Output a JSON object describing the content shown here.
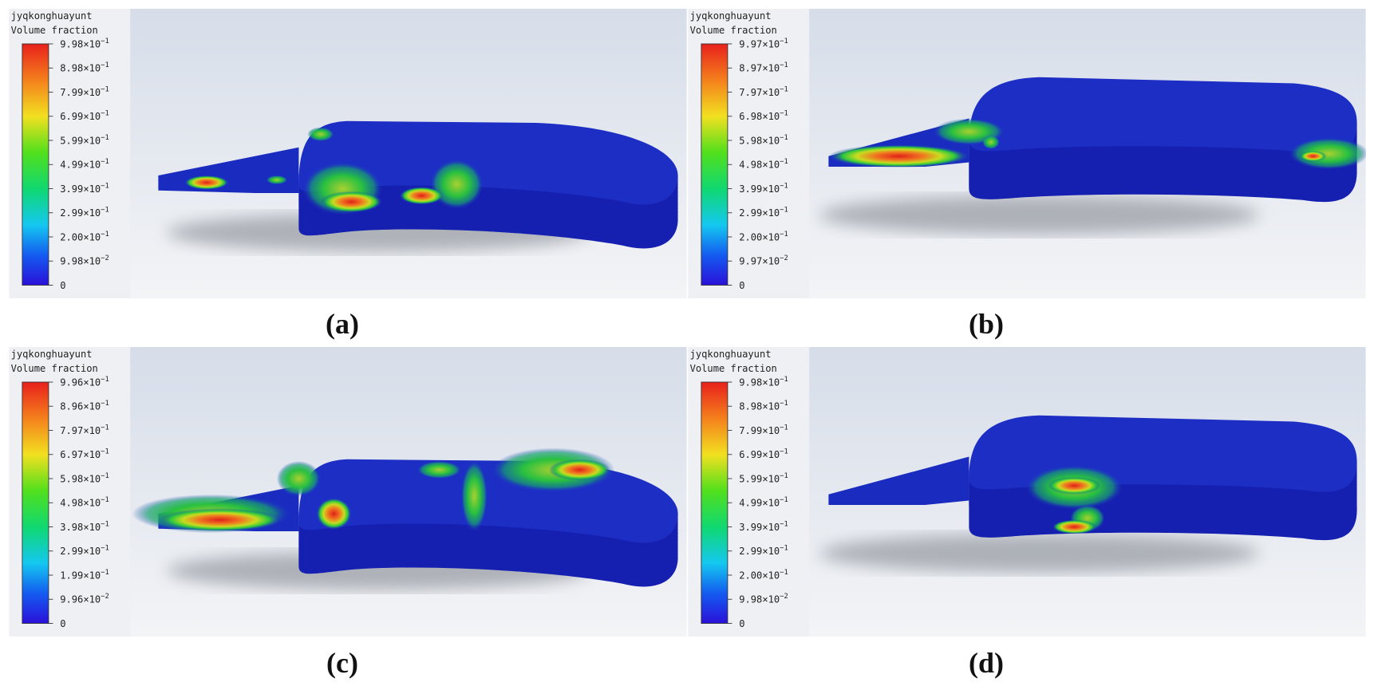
{
  "panels": [
    {
      "legend_title": "jyqkonghuayunt",
      "legend_subtitle": "Volume fraction",
      "tick_base": "×10",
      "ticks": [
        {
          "mantissa": "9.98",
          "exponent": "−1"
        },
        {
          "mantissa": "8.98",
          "exponent": "−1"
        },
        {
          "mantissa": "7.99",
          "exponent": "−1"
        },
        {
          "mantissa": "6.99",
          "exponent": "−1"
        },
        {
          "mantissa": "5.99",
          "exponent": "−1"
        },
        {
          "mantissa": "4.99",
          "exponent": "−1"
        },
        {
          "mantissa": "3.99",
          "exponent": "−1"
        },
        {
          "mantissa": "2.99",
          "exponent": "−1"
        },
        {
          "mantissa": "2.00",
          "exponent": "−1"
        },
        {
          "mantissa": "9.98",
          "exponent": "−2"
        },
        {
          "mantissa": "0"
        }
      ],
      "caption": "(a)"
    },
    {
      "legend_title": "jyqkonghuayunt",
      "legend_subtitle": "Volume fraction",
      "tick_base": "×10",
      "ticks": [
        {
          "mantissa": "9.97",
          "exponent": "−1"
        },
        {
          "mantissa": "8.97",
          "exponent": "−1"
        },
        {
          "mantissa": "7.97",
          "exponent": "−1"
        },
        {
          "mantissa": "6.98",
          "exponent": "−1"
        },
        {
          "mantissa": "5.98",
          "exponent": "−1"
        },
        {
          "mantissa": "4.98",
          "exponent": "−1"
        },
        {
          "mantissa": "3.99",
          "exponent": "−1"
        },
        {
          "mantissa": "2.99",
          "exponent": "−1"
        },
        {
          "mantissa": "2.00",
          "exponent": "−1"
        },
        {
          "mantissa": "9.97",
          "exponent": "−2"
        },
        {
          "mantissa": "0"
        }
      ],
      "caption": "(b)"
    },
    {
      "legend_title": "jyqkonghuayunt",
      "legend_subtitle": "Volume fraction",
      "tick_base": "×10",
      "ticks": [
        {
          "mantissa": "9.96",
          "exponent": "−1"
        },
        {
          "mantissa": "8.96",
          "exponent": "−1"
        },
        {
          "mantissa": "7.97",
          "exponent": "−1"
        },
        {
          "mantissa": "6.97",
          "exponent": "−1"
        },
        {
          "mantissa": "5.98",
          "exponent": "−1"
        },
        {
          "mantissa": "4.98",
          "exponent": "−1"
        },
        {
          "mantissa": "3.98",
          "exponent": "−1"
        },
        {
          "mantissa": "2.99",
          "exponent": "−1"
        },
        {
          "mantissa": "1.99",
          "exponent": "−1"
        },
        {
          "mantissa": "9.96",
          "exponent": "−2"
        },
        {
          "mantissa": "0"
        }
      ],
      "caption": "(c)"
    },
    {
      "legend_title": "jyqkonghuayunt",
      "legend_subtitle": "Volume fraction",
      "tick_base": "×10",
      "ticks": [
        {
          "mantissa": "9.98",
          "exponent": "−1"
        },
        {
          "mantissa": "8.98",
          "exponent": "−1"
        },
        {
          "mantissa": "7.99",
          "exponent": "−1"
        },
        {
          "mantissa": "6.99",
          "exponent": "−1"
        },
        {
          "mantissa": "5.99",
          "exponent": "−1"
        },
        {
          "mantissa": "4.99",
          "exponent": "−1"
        },
        {
          "mantissa": "3.99",
          "exponent": "−1"
        },
        {
          "mantissa": "2.99",
          "exponent": "−1"
        },
        {
          "mantissa": "2.00",
          "exponent": "−1"
        },
        {
          "mantissa": "9.98",
          "exponent": "−2"
        },
        {
          "mantissa": "0"
        }
      ],
      "caption": "(d)"
    }
  ]
}
